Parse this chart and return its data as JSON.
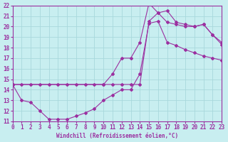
{
  "xlabel": "Windchill (Refroidissement éolien,°C)",
  "xlim": [
    0,
    23
  ],
  "ylim": [
    11,
    22
  ],
  "xticks": [
    0,
    1,
    2,
    3,
    4,
    5,
    6,
    7,
    8,
    9,
    10,
    11,
    12,
    13,
    14,
    15,
    16,
    17,
    18,
    19,
    20,
    21,
    22,
    23
  ],
  "yticks": [
    11,
    12,
    13,
    14,
    15,
    16,
    17,
    18,
    19,
    20,
    21,
    22
  ],
  "bg_color": "#c8eef0",
  "line_color": "#9b30a0",
  "grid_color": "#a8d8dc",
  "line1_x": [
    0,
    1,
    2,
    3,
    4,
    5,
    6,
    7,
    8,
    9,
    10,
    11,
    12,
    13,
    14,
    15,
    16,
    17,
    18,
    19,
    20,
    21,
    22,
    23
  ],
  "line1_y": [
    14.5,
    13.0,
    12.8,
    12.0,
    11.2,
    11.2,
    11.2,
    11.5,
    11.8,
    12.2,
    13.0,
    13.5,
    14.0,
    14.0,
    15.5,
    20.3,
    20.5,
    18.5,
    18.2,
    17.8,
    17.5,
    17.2,
    17.0,
    16.8
  ],
  "line2_x": [
    0,
    1,
    2,
    3,
    4,
    5,
    6,
    7,
    8,
    9,
    10,
    11,
    12,
    13,
    14,
    15,
    16,
    17,
    18,
    19,
    20,
    21,
    22,
    23
  ],
  "line2_y": [
    14.5,
    14.5,
    14.5,
    14.5,
    14.5,
    14.5,
    14.5,
    14.5,
    14.5,
    14.5,
    14.5,
    14.5,
    14.5,
    14.5,
    14.5,
    20.5,
    21.3,
    20.4,
    20.2,
    20.0,
    20.0,
    20.2,
    19.2,
    18.3
  ],
  "line3_x": [
    0,
    10,
    11,
    12,
    13,
    14,
    15,
    16,
    17,
    18,
    19,
    20,
    21,
    22,
    23
  ],
  "line3_y": [
    14.5,
    14.5,
    15.5,
    17.0,
    17.0,
    18.5,
    22.2,
    21.3,
    21.5,
    20.4,
    20.2,
    20.0,
    20.2,
    19.2,
    18.5
  ]
}
